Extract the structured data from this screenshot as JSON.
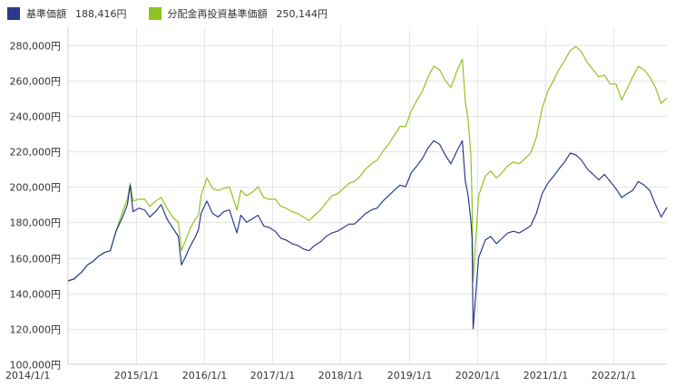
{
  "chart_data": {
    "type": "line",
    "title": "",
    "legend_position": "top-left",
    "grid": true,
    "y_unit_suffix": "円",
    "ylim": [
      100000,
      290000
    ],
    "yticks": [
      100000,
      120000,
      140000,
      160000,
      180000,
      200000,
      220000,
      240000,
      260000,
      280000
    ],
    "ytick_labels": [
      "100,000円",
      "120,000円",
      "140,000円",
      "160,000円",
      "180,000円",
      "200,000円",
      "220,000円",
      "240,000円",
      "260,000円",
      "280,000円"
    ],
    "xlim": [
      "2014-01-01",
      "2022-10-15"
    ],
    "xticks": [
      "2014-01-01",
      "2015-01-01",
      "2016-01-01",
      "2017-01-01",
      "2018-01-01",
      "2019-01-01",
      "2020-01-01",
      "2021-01-01",
      "2022-01-01"
    ],
    "xtick_labels": [
      "2014/1/1",
      "2015/1/1",
      "2016/1/1",
      "2017/1/1",
      "2018/1/1",
      "2019/1/1",
      "2020/1/1",
      "2021/1/1",
      "2022/1/1"
    ],
    "series": [
      {
        "name": "基準価額",
        "value_label": "188,416円",
        "color": "#2b3b8c",
        "points": [
          [
            "2014-01-01",
            147000
          ],
          [
            "2014-02-01",
            148000
          ],
          [
            "2014-03-15",
            152000
          ],
          [
            "2014-04-15",
            156000
          ],
          [
            "2014-05-15",
            158000
          ],
          [
            "2014-06-15",
            161000
          ],
          [
            "2014-07-15",
            163000
          ],
          [
            "2014-08-15",
            164000
          ],
          [
            "2014-09-15",
            175000
          ],
          [
            "2014-10-20",
            183000
          ],
          [
            "2014-11-15",
            190000
          ],
          [
            "2014-11-30",
            201000
          ],
          [
            "2014-12-15",
            186000
          ],
          [
            "2015-01-15",
            188000
          ],
          [
            "2015-02-15",
            187000
          ],
          [
            "2015-03-15",
            183000
          ],
          [
            "2015-04-15",
            186000
          ],
          [
            "2015-05-15",
            190000
          ],
          [
            "2015-06-15",
            182000
          ],
          [
            "2015-07-15",
            177000
          ],
          [
            "2015-08-15",
            172000
          ],
          [
            "2015-09-01",
            156000
          ],
          [
            "2015-09-20",
            160000
          ],
          [
            "2015-10-15",
            166000
          ],
          [
            "2015-11-15",
            172000
          ],
          [
            "2015-12-01",
            176000
          ],
          [
            "2015-12-15",
            185000
          ],
          [
            "2016-01-15",
            192000
          ],
          [
            "2016-02-15",
            185000
          ],
          [
            "2016-03-15",
            183000
          ],
          [
            "2016-04-15",
            186000
          ],
          [
            "2016-05-15",
            187000
          ],
          [
            "2016-06-24",
            174000
          ],
          [
            "2016-07-15",
            184000
          ],
          [
            "2016-08-15",
            180000
          ],
          [
            "2016-09-15",
            182000
          ],
          [
            "2016-10-15",
            184000
          ],
          [
            "2016-11-15",
            178000
          ],
          [
            "2016-12-15",
            177000
          ],
          [
            "2017-01-15",
            175000
          ],
          [
            "2017-02-15",
            171000
          ],
          [
            "2017-03-15",
            170000
          ],
          [
            "2017-04-15",
            168000
          ],
          [
            "2017-05-15",
            167000
          ],
          [
            "2017-06-15",
            165000
          ],
          [
            "2017-07-15",
            164000
          ],
          [
            "2017-08-15",
            167000
          ],
          [
            "2017-09-15",
            169000
          ],
          [
            "2017-10-15",
            172000
          ],
          [
            "2017-11-15",
            174000
          ],
          [
            "2017-12-15",
            175000
          ],
          [
            "2018-01-15",
            177000
          ],
          [
            "2018-02-15",
            179000
          ],
          [
            "2018-03-15",
            179000
          ],
          [
            "2018-04-15",
            182000
          ],
          [
            "2018-05-15",
            185000
          ],
          [
            "2018-06-15",
            187000
          ],
          [
            "2018-07-15",
            188000
          ],
          [
            "2018-08-15",
            192000
          ],
          [
            "2018-09-15",
            195000
          ],
          [
            "2018-10-15",
            198000
          ],
          [
            "2018-11-15",
            201000
          ],
          [
            "2018-12-15",
            200000
          ],
          [
            "2019-01-15",
            208000
          ],
          [
            "2019-02-15",
            212000
          ],
          [
            "2019-03-15",
            216000
          ],
          [
            "2019-04-15",
            222000
          ],
          [
            "2019-05-15",
            226000
          ],
          [
            "2019-06-15",
            224000
          ],
          [
            "2019-07-15",
            218000
          ],
          [
            "2019-08-15",
            213000
          ],
          [
            "2019-09-15",
            220000
          ],
          [
            "2019-10-15",
            226000
          ],
          [
            "2019-10-31",
            203000
          ],
          [
            "2019-11-15",
            195000
          ],
          [
            "2019-11-30",
            181000
          ],
          [
            "2019-12-06",
            171000
          ],
          [
            "2019-12-12",
            120000
          ],
          [
            "2019-12-25",
            138000
          ],
          [
            "2020-01-10",
            160000
          ],
          [
            "2020-02-15",
            170000
          ],
          [
            "2020-03-15",
            172000
          ],
          [
            "2020-04-15",
            168000
          ],
          [
            "2020-05-15",
            171000
          ],
          [
            "2020-06-15",
            174000
          ],
          [
            "2020-07-15",
            175000
          ],
          [
            "2020-08-15",
            174000
          ],
          [
            "2020-09-15",
            176000
          ],
          [
            "2020-10-15",
            178000
          ],
          [
            "2020-11-15",
            185000
          ],
          [
            "2020-12-15",
            196000
          ],
          [
            "2021-01-15",
            202000
          ],
          [
            "2021-02-15",
            206000
          ],
          [
            "2021-03-15",
            210000
          ],
          [
            "2021-04-15",
            214000
          ],
          [
            "2021-05-15",
            219000
          ],
          [
            "2021-06-15",
            218000
          ],
          [
            "2021-07-15",
            215000
          ],
          [
            "2021-08-15",
            210000
          ],
          [
            "2021-09-15",
            207000
          ],
          [
            "2021-10-15",
            204000
          ],
          [
            "2021-11-15",
            207000
          ],
          [
            "2021-12-15",
            203000
          ],
          [
            "2022-01-15",
            199000
          ],
          [
            "2022-02-15",
            194000
          ],
          [
            "2022-03-15",
            196000
          ],
          [
            "2022-04-15",
            198000
          ],
          [
            "2022-05-15",
            203000
          ],
          [
            "2022-06-15",
            201000
          ],
          [
            "2022-07-15",
            198000
          ],
          [
            "2022-08-15",
            190000
          ],
          [
            "2022-09-15",
            183000
          ],
          [
            "2022-10-15",
            188416
          ]
        ]
      },
      {
        "name": "分配金再投資基準価額",
        "value_label": "250,144円",
        "color": "#8fc31f",
        "points": [
          [
            "2014-01-01",
            147000
          ],
          [
            "2014-02-01",
            148000
          ],
          [
            "2014-03-15",
            152000
          ],
          [
            "2014-04-15",
            156000
          ],
          [
            "2014-05-15",
            158000
          ],
          [
            "2014-06-15",
            161000
          ],
          [
            "2014-07-15",
            163000
          ],
          [
            "2014-08-15",
            164000
          ],
          [
            "2014-09-15",
            175000
          ],
          [
            "2014-10-20",
            186000
          ],
          [
            "2014-11-15",
            193000
          ],
          [
            "2014-11-30",
            202000
          ],
          [
            "2014-12-15",
            192000
          ],
          [
            "2015-01-15",
            193000
          ],
          [
            "2015-02-15",
            193000
          ],
          [
            "2015-03-15",
            189000
          ],
          [
            "2015-04-15",
            192000
          ],
          [
            "2015-05-15",
            194000
          ],
          [
            "2015-06-15",
            188000
          ],
          [
            "2015-07-15",
            183000
          ],
          [
            "2015-08-15",
            180000
          ],
          [
            "2015-09-01",
            164000
          ],
          [
            "2015-09-20",
            169000
          ],
          [
            "2015-10-15",
            176000
          ],
          [
            "2015-11-15",
            182000
          ],
          [
            "2015-12-01",
            184000
          ],
          [
            "2015-12-15",
            195000
          ],
          [
            "2016-01-15",
            205000
          ],
          [
            "2016-02-15",
            199000
          ],
          [
            "2016-03-15",
            198000
          ],
          [
            "2016-04-15",
            199000
          ],
          [
            "2016-05-15",
            200000
          ],
          [
            "2016-06-24",
            187000
          ],
          [
            "2016-07-15",
            198000
          ],
          [
            "2016-08-15",
            195000
          ],
          [
            "2016-09-15",
            197000
          ],
          [
            "2016-10-15",
            200000
          ],
          [
            "2016-11-15",
            194000
          ],
          [
            "2016-12-15",
            193000
          ],
          [
            "2017-01-15",
            193000
          ],
          [
            "2017-02-15",
            189000
          ],
          [
            "2017-03-15",
            188000
          ],
          [
            "2017-04-15",
            186000
          ],
          [
            "2017-05-15",
            185000
          ],
          [
            "2017-06-15",
            183000
          ],
          [
            "2017-07-15",
            181000
          ],
          [
            "2017-08-15",
            184000
          ],
          [
            "2017-09-15",
            187000
          ],
          [
            "2017-10-15",
            191000
          ],
          [
            "2017-11-15",
            195000
          ],
          [
            "2017-12-15",
            196000
          ],
          [
            "2018-01-15",
            199000
          ],
          [
            "2018-02-15",
            202000
          ],
          [
            "2018-03-15",
            203000
          ],
          [
            "2018-04-15",
            206000
          ],
          [
            "2018-05-15",
            210000
          ],
          [
            "2018-06-15",
            213000
          ],
          [
            "2018-07-15",
            215000
          ],
          [
            "2018-08-15",
            220000
          ],
          [
            "2018-09-15",
            224000
          ],
          [
            "2018-10-15",
            229000
          ],
          [
            "2018-11-15",
            234000
          ],
          [
            "2018-12-15",
            234000
          ],
          [
            "2019-01-15",
            243000
          ],
          [
            "2019-02-15",
            249000
          ],
          [
            "2019-03-15",
            254000
          ],
          [
            "2019-04-15",
            262000
          ],
          [
            "2019-05-15",
            268000
          ],
          [
            "2019-06-15",
            266000
          ],
          [
            "2019-07-15",
            260000
          ],
          [
            "2019-08-15",
            256000
          ],
          [
            "2019-09-15",
            265000
          ],
          [
            "2019-10-15",
            272000
          ],
          [
            "2019-10-31",
            248000
          ],
          [
            "2019-11-15",
            238000
          ],
          [
            "2019-11-30",
            218000
          ],
          [
            "2019-12-06",
            192000
          ],
          [
            "2019-12-12",
            147000
          ],
          [
            "2019-12-25",
            168000
          ],
          [
            "2020-01-10",
            195000
          ],
          [
            "2020-02-15",
            206000
          ],
          [
            "2020-03-15",
            209000
          ],
          [
            "2020-04-15",
            205000
          ],
          [
            "2020-05-15",
            208000
          ],
          [
            "2020-06-15",
            212000
          ],
          [
            "2020-07-15",
            214000
          ],
          [
            "2020-08-15",
            213000
          ],
          [
            "2020-09-15",
            216000
          ],
          [
            "2020-10-15",
            219000
          ],
          [
            "2020-11-15",
            228000
          ],
          [
            "2020-12-15",
            244000
          ],
          [
            "2021-01-15",
            254000
          ],
          [
            "2021-02-15",
            260000
          ],
          [
            "2021-03-15",
            266000
          ],
          [
            "2021-04-15",
            271000
          ],
          [
            "2021-05-15",
            277000
          ],
          [
            "2021-06-15",
            279000
          ],
          [
            "2021-07-15",
            276000
          ],
          [
            "2021-08-15",
            270000
          ],
          [
            "2021-09-15",
            266000
          ],
          [
            "2021-10-15",
            262000
          ],
          [
            "2021-11-15",
            263000
          ],
          [
            "2021-12-15",
            258000
          ],
          [
            "2022-01-15",
            258000
          ],
          [
            "2022-02-15",
            249000
          ],
          [
            "2022-03-15",
            255000
          ],
          [
            "2022-04-15",
            262000
          ],
          [
            "2022-05-15",
            268000
          ],
          [
            "2022-06-15",
            266000
          ],
          [
            "2022-07-15",
            262000
          ],
          [
            "2022-08-15",
            256000
          ],
          [
            "2022-09-15",
            247000
          ],
          [
            "2022-10-15",
            250144
          ]
        ]
      }
    ]
  }
}
